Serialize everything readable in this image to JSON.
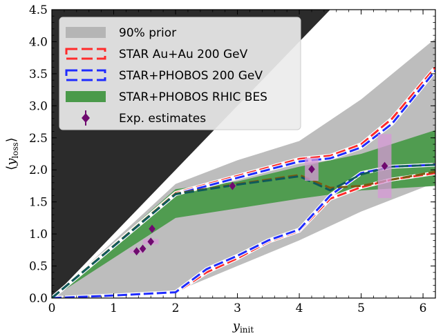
{
  "chart_data": {
    "type": "line",
    "xlabel": "y",
    "xlabel_sub": "init",
    "ylabel_main": "y",
    "ylabel_sub": "loss",
    "xlim": [
      0,
      6.2
    ],
    "ylim": [
      0,
      4.5
    ],
    "x_ticks": [
      0,
      1,
      2,
      3,
      4,
      5,
      6
    ],
    "y_ticks": [
      0.0,
      0.5,
      1.0,
      1.5,
      2.0,
      2.5,
      3.0,
      3.5,
      4.0,
      4.5
    ],
    "y_tick_labels": [
      "0.0",
      "0.5",
      "1.0",
      "1.5",
      "2.0",
      "2.5",
      "3.0",
      "3.5",
      "4.0",
      "4.5"
    ],
    "x_tick_labels": [
      "0",
      "1",
      "2",
      "3",
      "4",
      "5",
      "6"
    ],
    "legend_position": "top-left",
    "colors": {
      "forbidden_region": "#2b2b2b",
      "prior_band": "#bdbdbd",
      "star_auau": "#ff2a2a",
      "star_phobos": "#1f2bff",
      "bes_band": "#4a9a4a",
      "bes_line": "#7a5a10",
      "bes_line2": "#0f5a5a",
      "exp_marker": "#6f0a6f",
      "exp_box": "#d79ad7"
    },
    "legend": [
      {
        "label": "90% prior",
        "kind": "band",
        "color": "#b5b5b5"
      },
      {
        "label": "STAR Au+Au 200 GeV",
        "kind": "dashed-box",
        "color": "#ff2a2a"
      },
      {
        "label": "STAR+PHOBOS 200 GeV",
        "kind": "dashed-box",
        "color": "#1f2bff"
      },
      {
        "label": "STAR+PHOBOS RHIC BES",
        "kind": "band",
        "color": "#4a9a4a"
      },
      {
        "label": "Exp. estimates",
        "kind": "marker",
        "color": "#6f0a6f"
      }
    ],
    "prior_band": {
      "x": [
        0,
        2.0,
        3.0,
        4.0,
        5.0,
        6.2
      ],
      "upper": [
        0,
        1.78,
        2.15,
        2.45,
        3.1,
        4.05
      ],
      "lower": [
        0,
        0.1,
        0.5,
        0.9,
        1.35,
        1.8
      ]
    },
    "bes_band": {
      "x": [
        0,
        2.0,
        3.0,
        4.0,
        5.0,
        6.2
      ],
      "upper": [
        0,
        1.7,
        1.82,
        2.05,
        2.25,
        2.62
      ],
      "lower": [
        0,
        1.25,
        1.4,
        1.55,
        1.68,
        1.75
      ]
    },
    "series": [
      {
        "name": "STAR Au+Au 200 GeV",
        "color": "#ff2a2a",
        "curves": [
          {
            "x": [
              0,
              2.0,
              4.0,
              4.5,
              5.0,
              5.5,
              6.2
            ],
            "y": [
              0,
              1.64,
              2.17,
              2.22,
              2.4,
              2.8,
              3.6
            ]
          },
          {
            "x": [
              0,
              1.0,
              2.0,
              2.5,
              3.0,
              3.5,
              4.0,
              4.5,
              5.0,
              5.5,
              6.2
            ],
            "y": [
              0,
              0.03,
              0.08,
              0.4,
              0.62,
              0.88,
              1.05,
              1.55,
              1.73,
              1.85,
              1.95
            ]
          }
        ]
      },
      {
        "name": "STAR+PHOBOS 200 GeV",
        "color": "#1f2bff",
        "curves": [
          {
            "x": [
              0,
              2.0,
              4.0,
              4.5,
              5.0,
              5.5,
              6.2
            ],
            "y": [
              0,
              1.62,
              2.13,
              2.18,
              2.35,
              2.72,
              3.55
            ]
          },
          {
            "x": [
              0,
              1.0,
              2.0,
              2.5,
              3.0,
              3.5,
              4.0,
              4.5,
              5.0,
              5.5,
              6.2
            ],
            "y": [
              0,
              0.04,
              0.09,
              0.45,
              0.66,
              0.9,
              1.07,
              1.6,
              1.95,
              2.05,
              2.08
            ]
          }
        ]
      }
    ],
    "bes_overlay_curves": [
      {
        "color": "#7a5a10",
        "x": [
          0,
          2.0,
          3.0,
          4.0,
          4.5,
          5.0,
          5.5,
          6.2
        ],
        "y": [
          0,
          1.63,
          1.78,
          1.92,
          1.72,
          1.75,
          1.85,
          1.97
        ]
      },
      {
        "color": "#0f5a5a",
        "x": [
          0,
          2.0,
          3.0,
          4.0,
          4.5,
          5.0,
          5.5,
          6.2
        ],
        "y": [
          0,
          1.62,
          1.77,
          1.9,
          1.68,
          1.93,
          2.05,
          2.08
        ]
      }
    ],
    "exp_points": [
      {
        "x": 1.37,
        "y": 0.73,
        "box_xw": 0.22,
        "box_yh": 0.06
      },
      {
        "x": 1.47,
        "y": 0.77,
        "box_xw": 0.1,
        "box_yh": 0.05
      },
      {
        "x": 1.6,
        "y": 0.88,
        "box_xw": 0.25,
        "box_yh": 0.08
      },
      {
        "x": 1.62,
        "y": 1.08,
        "box_xw": 0.05,
        "box_yh": 0.05
      },
      {
        "x": 2.92,
        "y": 1.75,
        "box_xw": 0.1,
        "box_yh": 0.04
      },
      {
        "x": 4.2,
        "y": 2.01,
        "box_xw": 0.22,
        "box_yh": 0.36
      },
      {
        "x": 5.38,
        "y": 2.06,
        "box_xw": 0.22,
        "box_yh": 1.0
      }
    ]
  }
}
